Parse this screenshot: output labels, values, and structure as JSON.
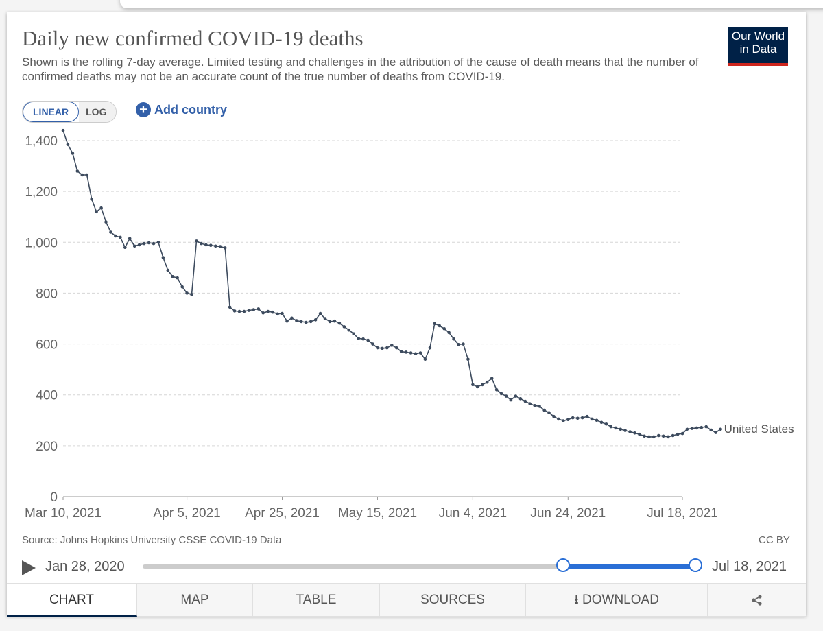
{
  "header": {
    "title": "Daily new confirmed COVID-19 deaths",
    "subtitle": "Shown is the rolling 7-day average. Limited testing and challenges in the attribution of the cause of death means that the number of confirmed deaths may not be an accurate count of the true number of deaths from COVID-19.",
    "logo_line1": "Our World",
    "logo_line2": "in Data"
  },
  "controls": {
    "linear_label": "LINEAR",
    "log_label": "LOG",
    "add_country_label": "Add country",
    "plus_icon": "plus-circle-icon"
  },
  "footer": {
    "source": "Source: Johns Hopkins University CSSE COVID-19 Data",
    "license": "CC BY"
  },
  "timeline": {
    "start_label": "Jan 28, 2020",
    "end_label": "Jul 18, 2021",
    "selected_start_fraction": 0.76,
    "selected_end_fraction": 1.0
  },
  "tabs": [
    {
      "label": "CHART",
      "active": true
    },
    {
      "label": "MAP",
      "active": false
    },
    {
      "label": "TABLE",
      "active": false
    },
    {
      "label": "SOURCES",
      "active": false
    },
    {
      "label": "DOWNLOAD",
      "active": false,
      "icon": "download-icon"
    },
    {
      "label": "",
      "active": false,
      "icon": "share-icon"
    }
  ],
  "colors": {
    "series": "#3d4b5e",
    "accent": "#3360a9",
    "logo_bg": "#002147",
    "logo_bar": "#ce261e",
    "slider": "#2a6fd6"
  },
  "chart_data": {
    "type": "line",
    "title": "Daily new confirmed COVID-19 deaths",
    "ylabel": "",
    "xlabel": "",
    "ylim": [
      0,
      1400
    ],
    "yticks": [
      0,
      200,
      400,
      600,
      800,
      1000,
      1200,
      1400
    ],
    "ytick_labels": [
      "0",
      "200",
      "400",
      "600",
      "800",
      "1,000",
      "1,200",
      "1,400"
    ],
    "xlim": [
      "2021-03-10",
      "2021-07-18"
    ],
    "xticks": [
      "2021-03-10",
      "2021-04-05",
      "2021-04-25",
      "2021-05-15",
      "2021-06-04",
      "2021-06-24",
      "2021-07-18"
    ],
    "xtick_labels": [
      "Mar 10, 2021",
      "Apr 5, 2021",
      "Apr 25, 2021",
      "May 15, 2021",
      "Jun 4, 2021",
      "Jun 24, 2021",
      "Jul 18, 2021"
    ],
    "grid": "horizontal dashed",
    "series": [
      {
        "name": "United States",
        "start_date": "2021-03-10",
        "values": [
          1440,
          1385,
          1350,
          1280,
          1265,
          1265,
          1170,
          1120,
          1135,
          1080,
          1040,
          1025,
          1020,
          980,
          1015,
          985,
          990,
          995,
          998,
          995,
          1000,
          940,
          890,
          865,
          860,
          825,
          800,
          795,
          1005,
          995,
          990,
          988,
          985,
          983,
          978,
          745,
          730,
          728,
          728,
          732,
          735,
          738,
          722,
          728,
          725,
          718,
          720,
          690,
          702,
          692,
          688,
          685,
          688,
          695,
          720,
          700,
          688,
          690,
          682,
          668,
          655,
          640,
          622,
          620,
          615,
          600,
          585,
          583,
          585,
          595,
          585,
          570,
          568,
          565,
          562,
          565,
          540,
          585,
          680,
          672,
          660,
          645,
          620,
          598,
          600,
          540,
          440,
          432,
          440,
          450,
          465,
          420,
          405,
          395,
          380,
          395,
          385,
          375,
          365,
          358,
          355,
          340,
          330,
          315,
          305,
          298,
          303,
          310,
          308,
          310,
          315,
          305,
          300,
          292,
          285,
          275,
          270,
          265,
          260,
          255,
          250,
          245,
          238,
          235,
          235,
          240,
          238,
          235,
          240,
          245,
          248,
          265,
          268,
          270,
          272,
          275,
          262,
          252,
          265
        ]
      }
    ],
    "end_label": "United States"
  }
}
